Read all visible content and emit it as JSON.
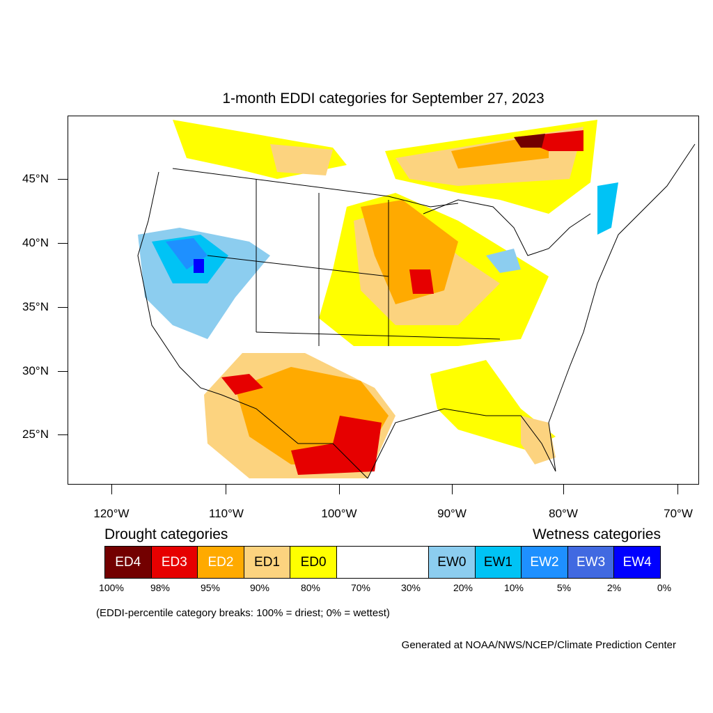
{
  "title": "1-month EDDI categories for September 27, 2023",
  "axes": {
    "lat_labels": [
      "45°N",
      "40°N",
      "35°N",
      "30°N",
      "25°N"
    ],
    "lon_labels": [
      "120°W",
      "110°W",
      "100°W",
      "90°W",
      "80°W",
      "70°W"
    ]
  },
  "legend": {
    "drought_heading": "Drought categories",
    "wetness_heading": "Wetness categories",
    "categories": [
      {
        "label": "ED4",
        "color": "#730000",
        "text_color": "#ffffff"
      },
      {
        "label": "ED3",
        "color": "#e60000",
        "text_color": "#ffffff"
      },
      {
        "label": "ED2",
        "color": "#ffaa00",
        "text_color": "#ffffff"
      },
      {
        "label": "ED1",
        "color": "#fcd37f",
        "text_color": "#000000"
      },
      {
        "label": "ED0",
        "color": "#ffff00",
        "text_color": "#000000"
      },
      {
        "label": "",
        "color": "#ffffff",
        "text_color": "#000000"
      },
      {
        "label": "EW0",
        "color": "#8ccdef",
        "text_color": "#000000"
      },
      {
        "label": "EW1",
        "color": "#00c3f5",
        "text_color": "#000000"
      },
      {
        "label": "EW2",
        "color": "#1e90ff",
        "text_color": "#ffffff"
      },
      {
        "label": "EW3",
        "color": "#4169e1",
        "text_color": "#ffffff"
      },
      {
        "label": "EW4",
        "color": "#0000ff",
        "text_color": "#ffffff"
      }
    ],
    "percent_breaks": [
      "100%",
      "98%",
      "95%",
      "90%",
      "80%",
      "70%",
      "30%",
      "20%",
      "10%",
      "5%",
      "2%",
      "0%"
    ]
  },
  "note": "(EDDI-percentile category breaks: 100% = driest; 0% = wettest)",
  "credit": "Generated at NOAA/NWS/NCEP/Climate Prediction Center"
}
